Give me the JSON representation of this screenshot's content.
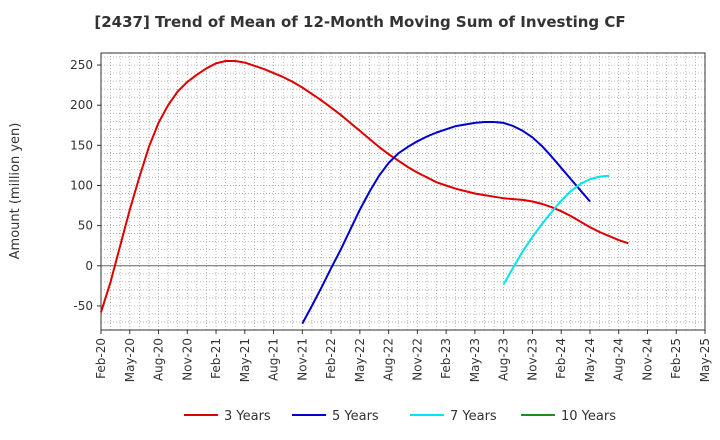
{
  "title": "[2437]  Trend of Mean of 12-Month Moving Sum of Investing CF",
  "chart_data": {
    "type": "line",
    "title": "[2437]  Trend of Mean of 12-Month Moving Sum of Investing CF",
    "ylabel": "Amount (million yen)",
    "xlabel": "",
    "ylim": [
      -80,
      265
    ],
    "yticks": [
      -50,
      0,
      50,
      100,
      150,
      200,
      250
    ],
    "x_ticks": [
      "Feb-20",
      "May-20",
      "Aug-20",
      "Nov-20",
      "Feb-21",
      "May-21",
      "Aug-21",
      "Nov-21",
      "Feb-22",
      "May-22",
      "Aug-22",
      "Nov-22",
      "Feb-23",
      "May-23",
      "Aug-23",
      "Nov-23",
      "Feb-24",
      "May-24",
      "Aug-24",
      "Nov-24",
      "Feb-25",
      "May-25"
    ],
    "grid": true,
    "legend_position": "bottom",
    "series": [
      {
        "name": "3 Years",
        "color": "#dd0000",
        "start_index": 0,
        "values": [
          -58,
          -20,
          25,
          70,
          110,
          148,
          178,
          200,
          217,
          229,
          238,
          246,
          252,
          255,
          255,
          253,
          249,
          245,
          240,
          235,
          229,
          222,
          214,
          206,
          197,
          188,
          178,
          168,
          158,
          148,
          139,
          131,
          123,
          116,
          110,
          104,
          100,
          96,
          93,
          90,
          88,
          86,
          84,
          83,
          82,
          80,
          77,
          73,
          68,
          62,
          55,
          48,
          42,
          37,
          32,
          28
        ]
      },
      {
        "name": "5 Years",
        "color": "#0000cc",
        "start_index": 21,
        "values": [
          -72,
          -50,
          -27,
          -3,
          20,
          45,
          70,
          92,
          112,
          128,
          140,
          148,
          155,
          161,
          166,
          170,
          174,
          176,
          178,
          179,
          179,
          178,
          174,
          168,
          160,
          149,
          136,
          122,
          108,
          94,
          80
        ]
      },
      {
        "name": "7 Years",
        "color": "#00e5ee",
        "start_index": 42,
        "values": [
          -23,
          -2,
          18,
          36,
          52,
          67,
          81,
          93,
          102,
          108,
          111,
          112
        ]
      },
      {
        "name": "10 Years",
        "color": "#228b22",
        "start_index": 0,
        "values": []
      }
    ]
  }
}
